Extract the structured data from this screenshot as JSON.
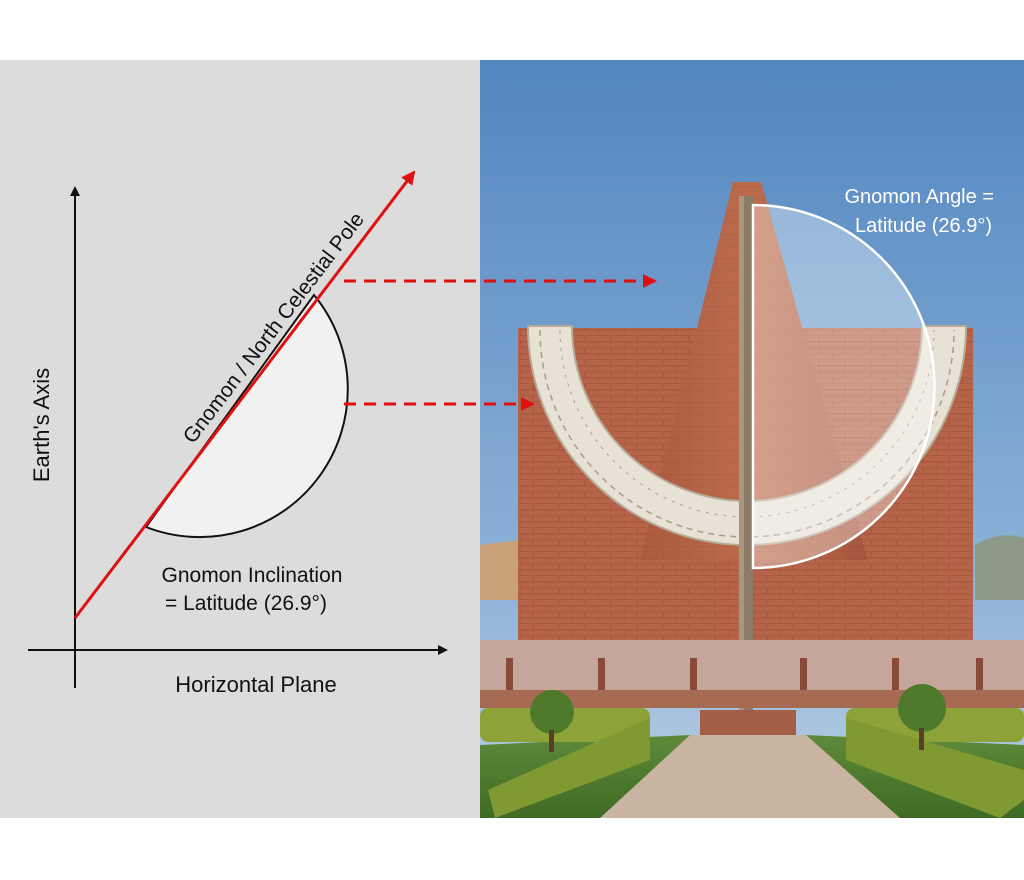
{
  "diagram": {
    "vertical_axis_label": "Earth's Axis",
    "horizontal_axis_label": "Horizontal Plane",
    "gnomon_label": "Gnomon / North Celestial Pole",
    "inclination_label_line1": "Gnomon Inclination",
    "inclination_label_line2": "= Latitude (26.9°)"
  },
  "photo": {
    "angle_label_line1": "Gnomon Angle =",
    "angle_label_line2": "Latitude (26.9°)"
  },
  "colors": {
    "left_panel_bg": "#dcdcdc",
    "gnomon_line": "#e01010",
    "dashed_arrow": "#e01010",
    "axis": "#111111",
    "sky_top": "#5a8fc4",
    "sky_bottom": "#a9c6de",
    "sandstone": "#b4644a",
    "marble": "#e6e0d4"
  },
  "icons": {
    "photo_panel": "jantar-mantar-samrat-yantra-photo"
  }
}
